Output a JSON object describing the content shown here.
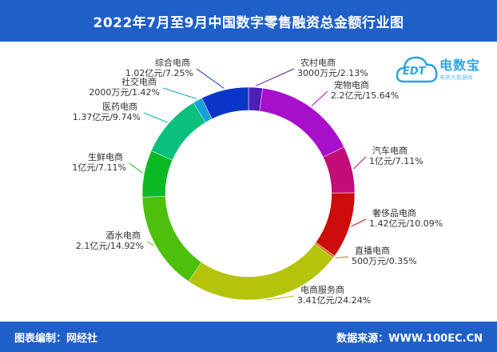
{
  "header": {
    "title": "2022年7月至9月中国数字零售融资总金额行业图"
  },
  "footer": {
    "left": "图表编制：网经社",
    "right": "数据来源：WWW.100EC.CN"
  },
  "logo": {
    "name": "电数宝",
    "short": "EDT",
    "subtitle": "电商大数据库",
    "icon": "cloud-icon"
  },
  "colors": {
    "header_bg": "#1f5fc8",
    "logo_blue": "#2fa3e6"
  },
  "chart_data": {
    "type": "pie",
    "donut": true,
    "title": "2022年7月至9月中国数字零售融资总金额行业图",
    "slices": [
      {
        "name": "农村电商",
        "amount": "3000万元",
        "percent": 2.13,
        "percent_label": "2.13%",
        "color": "#4d1fb8"
      },
      {
        "name": "宠物电商",
        "amount": "2.2亿元",
        "percent": 15.64,
        "percent_label": "15.64%",
        "color": "#a80fcb"
      },
      {
        "name": "汽车电商",
        "amount": "1亿元",
        "percent": 7.11,
        "percent_label": "7.11%",
        "color": "#c20d78"
      },
      {
        "name": "奢侈品电商",
        "amount": "1.42亿元",
        "percent": 10.09,
        "percent_label": "10.09%",
        "color": "#cc0b0b"
      },
      {
        "name": "直播电商",
        "amount": "500万元",
        "percent": 0.35,
        "percent_label": "0.35%",
        "color": "#e0661a"
      },
      {
        "name": "电商服务商",
        "amount": "3.41亿元",
        "percent": 24.24,
        "percent_label": "24.24%",
        "color": "#b4c40a"
      },
      {
        "name": "酒水电商",
        "amount": "2.1亿元",
        "percent": 14.92,
        "percent_label": "14.92%",
        "color": "#4cc00a"
      },
      {
        "name": "生鲜电商",
        "amount": "1亿元",
        "percent": 7.11,
        "percent_label": "7.11%",
        "color": "#0ab924"
      },
      {
        "name": "医药电商",
        "amount": "1.37亿元",
        "percent": 9.74,
        "percent_label": "9.74%",
        "color": "#0ac07c"
      },
      {
        "name": "社交电商",
        "amount": "2000万元",
        "percent": 1.42,
        "percent_label": "1.42%",
        "color": "#1aa0d8"
      },
      {
        "name": "综合电商",
        "amount": "1.02亿元",
        "percent": 7.25,
        "percent_label": "7.25%",
        "color": "#0a35c8"
      }
    ]
  }
}
